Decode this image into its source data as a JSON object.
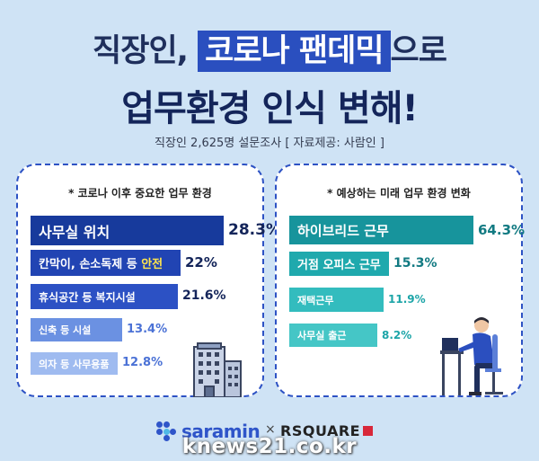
{
  "header": {
    "title_line1_pre": "직장인,",
    "title_line1_highlight": "코로나 팬데믹",
    "title_line1_post": "으로",
    "title_line2": "업무환경 인식 변해!",
    "subtitle": "직장인 2,625명 설문조사 [ 자료제공: 사람인 ]"
  },
  "chart_data": [
    {
      "type": "bar",
      "orientation": "horizontal",
      "title": "* 코로나 이후 중요한 업무 환경",
      "unit": "%",
      "categories": [
        "사무실 위치",
        "칸막이, 손소독제 등 안전",
        "휴식공간 등 복지시설",
        "신축 등 시설",
        "의자 등 사무용품"
      ],
      "label_parts": [
        {
          "text": "사무실 위치",
          "accent": ""
        },
        {
          "text": "칸막이, 손소독제 등 ",
          "accent": "안전"
        },
        {
          "text": "휴식공간 등 복지시설",
          "accent": ""
        },
        {
          "text": "신축 등 시설",
          "accent": ""
        },
        {
          "text": "의자 등 사무용품",
          "accent": ""
        }
      ],
      "values": [
        28.3,
        22,
        21.6,
        13.4,
        12.8
      ],
      "value_labels": [
        "28.3%",
        "22%",
        "21.6%",
        "13.4%",
        "12.8%"
      ],
      "colors": [
        "#173a9c",
        "#2144b3",
        "#2c51c4",
        "#6b91e2",
        "#9fbbf0"
      ],
      "value_colors": [
        "#14255a",
        "#14255a",
        "#14255a",
        "#4b72d6",
        "#4b72d6"
      ],
      "xlim": [
        0,
        30
      ]
    },
    {
      "type": "bar",
      "orientation": "horizontal",
      "title": "* 예상하는 미래 업무 환경 변화",
      "unit": "%",
      "categories": [
        "하이브리드 근무",
        "거점 오피스 근무",
        "재택근무",
        "사무실 출근"
      ],
      "label_parts": [
        {
          "text": "하이브리드 근무",
          "accent": ""
        },
        {
          "text": "거점 오피스 근무",
          "accent": ""
        },
        {
          "text": "재택근무",
          "accent": ""
        },
        {
          "text": "사무실 출근",
          "accent": ""
        }
      ],
      "values": [
        64.3,
        15.3,
        11.9,
        8.2
      ],
      "value_labels": [
        "64.3%",
        "15.3%",
        "11.9%",
        "8.2%"
      ],
      "colors": [
        "#17949c",
        "#1fa9ad",
        "#33bcbe",
        "#45c6c6"
      ],
      "value_colors": [
        "#127a82",
        "#127a82",
        "#1da5a8",
        "#1da5a8"
      ],
      "xlim": [
        0,
        66
      ]
    }
  ],
  "footer": {
    "saramin": "saramin",
    "times": "×",
    "rsquare": "RSQUARE",
    "watermark": "knews21.co.kr"
  },
  "colors": {
    "background": "#cfe3f5",
    "title_highlight": "#2a4fbf",
    "panel_border": "#2d52c4"
  },
  "icons": [
    "building-icon",
    "person-at-desk-icon",
    "saramin-logo-icon",
    "rsquare-logo-icon"
  ]
}
